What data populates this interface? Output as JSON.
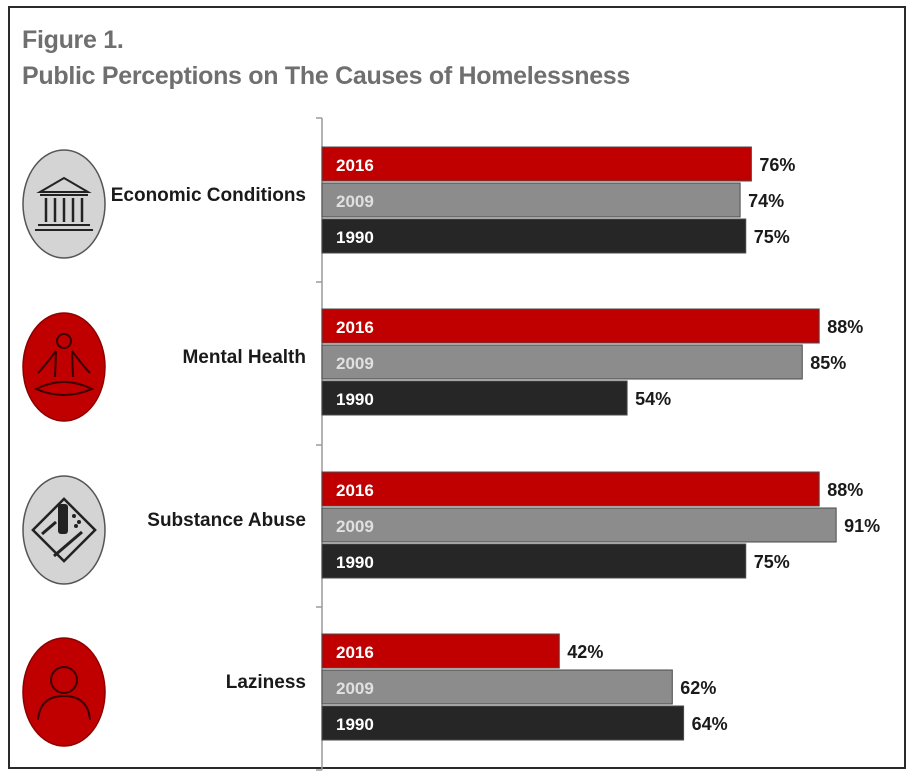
{
  "figure_label": "Figure 1.",
  "title": "Public Perceptions on The Causes of Homelessness",
  "colors": {
    "2016": "#c00000",
    "2009": "#8c8c8c",
    "1990": "#262626",
    "icon_red": "#c00000",
    "icon_gray": "#d4d4d4"
  },
  "chart_data": {
    "type": "bar",
    "orientation": "horizontal",
    "title": "Public Perceptions on The Causes of Homelessness",
    "categories": [
      "Economic Conditions",
      "Mental Health",
      "Substance Abuse",
      "Laziness"
    ],
    "category_icons": [
      "bank-icon",
      "meditation-icon",
      "substance-icon",
      "person-icon"
    ],
    "series": [
      {
        "name": "2016",
        "values": [
          76,
          88,
          88,
          42
        ]
      },
      {
        "name": "2009",
        "values": [
          74,
          85,
          91,
          62
        ]
      },
      {
        "name": "1990",
        "values": [
          75,
          54,
          75,
          64
        ]
      }
    ],
    "value_labels": [
      [
        "76%",
        "88%",
        "88%",
        "42%"
      ],
      [
        "74%",
        "85%",
        "91%",
        "62%"
      ],
      [
        "75%",
        "54%",
        "75%",
        "64%"
      ]
    ],
    "xlim": [
      0,
      100
    ],
    "unit": "%",
    "grid": false,
    "legend": "inline"
  }
}
